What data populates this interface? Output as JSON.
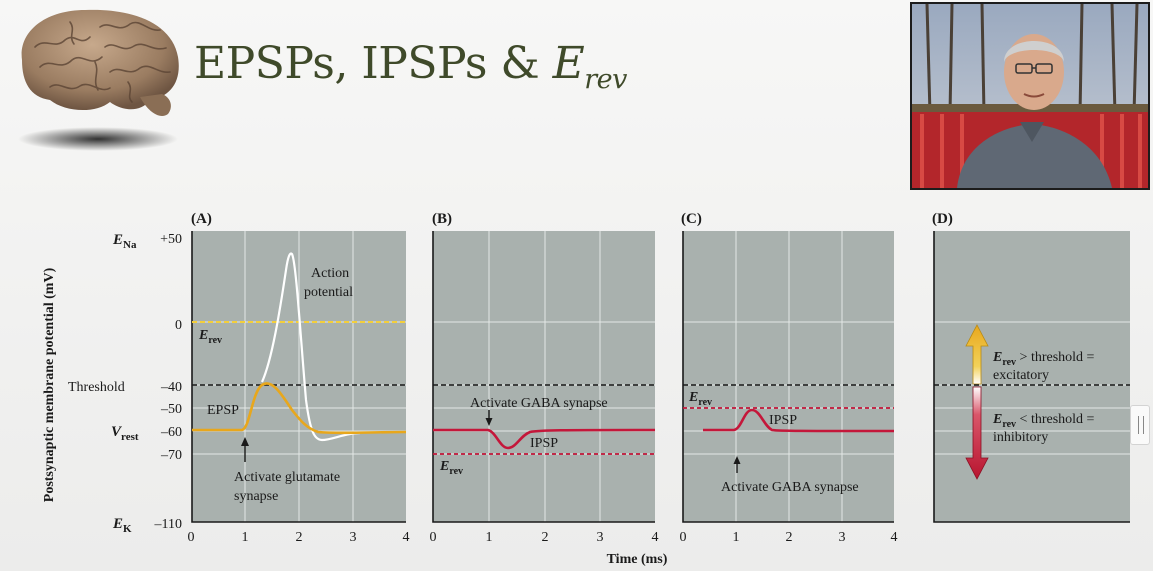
{
  "title": {
    "main": "EPSPs, IPSPs & ",
    "e": "E",
    "sub": "rev"
  },
  "figure": {
    "ylabel": "Postsynaptic membrane potential (mV)",
    "xlabel": "Time (ms)",
    "x_ticks": [
      "0",
      "1",
      "2",
      "3",
      "4"
    ],
    "y_axis": {
      "e_na": {
        "main": "E",
        "sub": "Na",
        "value": "+50"
      },
      "zero": "0",
      "threshold": {
        "label": "Threshold",
        "value": "–40"
      },
      "minus50": "–50",
      "v_rest": {
        "main": "V",
        "sub": "rest",
        "value": "–60"
      },
      "minus70": "–70",
      "e_k": {
        "main": "E",
        "sub": "K",
        "value": "–110"
      }
    },
    "panels": {
      "a": {
        "letter": "(A)",
        "erev": {
          "main": "E",
          "sub": "rev"
        },
        "epsp": "EPSP",
        "action_potential": [
          "Action",
          "potential"
        ],
        "activate": [
          "Activate glutamate",
          "synapse"
        ]
      },
      "b": {
        "letter": "(B)",
        "activate": "Activate GABA synapse",
        "ipsp": "IPSP",
        "erev": {
          "main": "E",
          "sub": "rev"
        }
      },
      "c": {
        "letter": "(C)",
        "erev": {
          "main": "E",
          "sub": "rev"
        },
        "ipsp": "IPSP",
        "activate": "Activate GABA synapse"
      },
      "d": {
        "letter": "(D)",
        "excitatory": {
          "e": "E",
          "sub": "rev",
          "rest": " > threshold =",
          "line2": "excitatory"
        },
        "inhibitory": {
          "e": "E",
          "sub": "rev",
          "rest": " < threshold =",
          "line2": "inhibitory"
        }
      }
    }
  },
  "colors": {
    "panel_bg": "#a9b1ae",
    "grid": "#e4e8e6",
    "epsp": "#e8a71c",
    "ipsp": "#c4173a",
    "erev_b": "#c4173a",
    "erev_c": "#c4173a",
    "threshold": "#1a1a1a",
    "title": "#3f4a2a"
  },
  "icons": {
    "brain": "brain-icon",
    "webcam": "presenter-webcam",
    "scroll": "scroll-handle"
  }
}
